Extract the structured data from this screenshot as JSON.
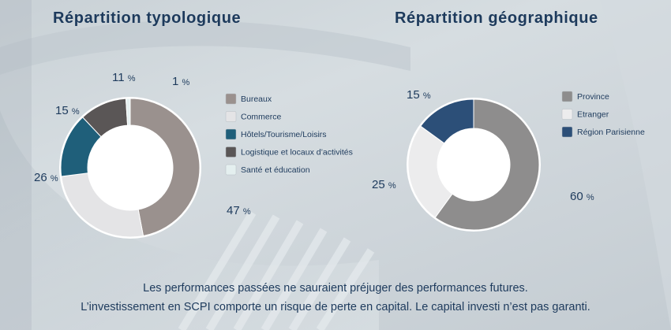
{
  "titles": {
    "left": "Répartition typologique",
    "right": "Répartition géographique"
  },
  "footer": {
    "line1": "Les performances passées ne sauraient préjuger des performances futures.",
    "line2": "L’investissement en SCPI comporte un risque de perte en capital. Le capital investi n’est pas garanti."
  },
  "percent_symbol": "%",
  "chart_data": [
    {
      "type": "pie",
      "title": "Répartition typologique",
      "categories": [
        "Bureaux",
        "Commerce",
        "Hôtels/Tourisme/Loisirs",
        "Logistique et locaux d’activités",
        "Santé et éducation"
      ],
      "values": [
        47,
        26,
        15,
        11,
        1
      ],
      "colors": [
        "#9a918e",
        "#e4e4e6",
        "#1f5f7a",
        "#5a5656",
        "#e4efef"
      ],
      "donut": true,
      "legend_position": "right"
    },
    {
      "type": "pie",
      "title": "Répartition géographique",
      "categories": [
        "Province",
        "Etranger",
        "Région Parisienne"
      ],
      "values": [
        60,
        25,
        15
      ],
      "colors": [
        "#8e8d8d",
        "#ececed",
        "#2c4f78"
      ],
      "donut": true,
      "legend_position": "right"
    }
  ]
}
